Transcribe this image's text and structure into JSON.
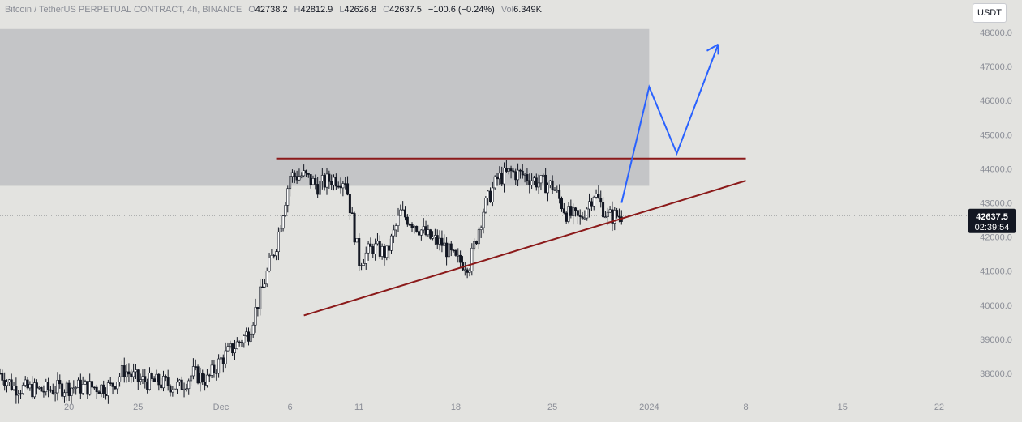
{
  "header": {
    "symbol": "Bitcoin / TetherUS PERPETUAL CONTRACT, 4h, BINANCE",
    "o_label": "O",
    "o_value": "42738.2",
    "h_label": "H",
    "h_value": "42812.9",
    "l_label": "L",
    "l_value": "42626.8",
    "c_label": "C",
    "c_value": "42637.5",
    "change": "−100.6 (−0.24%)",
    "vol_label": "Vol",
    "vol_value": "6.349K"
  },
  "currency_button": "USDT",
  "price_label": {
    "price": "42637.5",
    "countdown": "02:39:54"
  },
  "colors": {
    "background": "#e3e3e0",
    "zone": "#c4c5c7",
    "trendline": "#8b1a1a",
    "projection": "#2962ff",
    "candle": "#131722",
    "axis_text": "#8a8d96"
  },
  "chart_data": {
    "type": "candlestick",
    "title": "Bitcoin / TetherUS PERPETUAL CONTRACT, 4h, BINANCE",
    "ylim": [
      37500,
      48200
    ],
    "y_ticks": [
      38000,
      39000,
      40000,
      41000,
      42000,
      43000,
      44000,
      45000,
      46000,
      47000,
      48000
    ],
    "y_tick_labels": [
      "38000.0",
      "39000.0",
      "40000.0",
      "41000.0",
      "42000.0",
      "43000.0",
      "44000.0",
      "45000.0",
      "46000.0",
      "47000.0",
      "48000.0"
    ],
    "x_range": [
      "2023-11-15",
      "2024-01-24"
    ],
    "x_ticks": [
      {
        "date": "2023-11-20",
        "label": "20"
      },
      {
        "date": "2023-11-25",
        "label": "25"
      },
      {
        "date": "2023-12-01",
        "label": "Dec"
      },
      {
        "date": "2023-12-06",
        "label": "6"
      },
      {
        "date": "2023-12-11",
        "label": "11"
      },
      {
        "date": "2023-12-18",
        "label": "18"
      },
      {
        "date": "2023-12-25",
        "label": "25"
      },
      {
        "date": "2024-01-01",
        "label": "2024"
      },
      {
        "date": "2024-01-08",
        "label": "8"
      },
      {
        "date": "2024-01-15",
        "label": "15"
      },
      {
        "date": "2024-01-22",
        "label": "22"
      }
    ],
    "last_price": 42637.5,
    "price_path": [
      [
        "2023-11-15",
        38000
      ],
      [
        "2023-11-16",
        37600
      ],
      [
        "2023-11-18",
        37500
      ],
      [
        "2023-11-20",
        37600
      ],
      [
        "2023-11-23",
        37600
      ],
      [
        "2023-11-24",
        38100
      ],
      [
        "2023-11-25",
        37800
      ],
      [
        "2023-11-27",
        37700
      ],
      [
        "2023-11-28",
        37600
      ],
      [
        "2023-11-29",
        38000
      ],
      [
        "2023-11-30",
        37800
      ],
      [
        "2023-12-01",
        38400
      ],
      [
        "2023-12-02",
        38800
      ],
      [
        "2023-12-03",
        39200
      ],
      [
        "2023-12-04",
        40500
      ],
      [
        "2023-12-05",
        41800
      ],
      [
        "2023-12-06",
        43800
      ],
      [
        "2023-12-07",
        43800
      ],
      [
        "2023-12-08",
        43500
      ],
      [
        "2023-12-09",
        43700
      ],
      [
        "2023-12-10",
        43700
      ],
      [
        "2023-12-11",
        41300
      ],
      [
        "2023-12-12",
        41700
      ],
      [
        "2023-12-13",
        41500
      ],
      [
        "2023-12-14",
        42700
      ],
      [
        "2023-12-15",
        42400
      ],
      [
        "2023-12-16",
        42000
      ],
      [
        "2023-12-17",
        41800
      ],
      [
        "2023-12-18",
        41300
      ],
      [
        "2023-12-19",
        41200
      ],
      [
        "2023-12-20",
        42800
      ],
      [
        "2023-12-21",
        43700
      ],
      [
        "2023-12-22",
        43900
      ],
      [
        "2023-12-23",
        43800
      ],
      [
        "2023-12-24",
        43600
      ],
      [
        "2023-12-25",
        43500
      ],
      [
        "2023-12-26",
        42700
      ],
      [
        "2023-12-27",
        42500
      ],
      [
        "2023-12-28",
        43300
      ],
      [
        "2023-12-29",
        42600
      ],
      [
        "2023-12-30",
        42637.5
      ]
    ],
    "annotations": {
      "resistance_zone": {
        "x": [
          "2023-11-15",
          "2024-01-01"
        ],
        "y": [
          43500,
          48100
        ]
      },
      "horizontal_line": {
        "x": [
          "2023-12-05",
          "2024-01-08"
        ],
        "y": 44300
      },
      "rising_trendline": {
        "x": [
          "2023-12-07",
          "2024-01-08"
        ],
        "y": [
          39700,
          43650
        ]
      },
      "projected_path": [
        [
          "2023-12-30",
          43000
        ],
        [
          "2024-01-01",
          46400
        ],
        [
          "2024-01-03",
          44450
        ],
        [
          "2024-01-06",
          47650
        ],
        [
          "2024-01-06",
          47350
        ]
      ]
    }
  }
}
